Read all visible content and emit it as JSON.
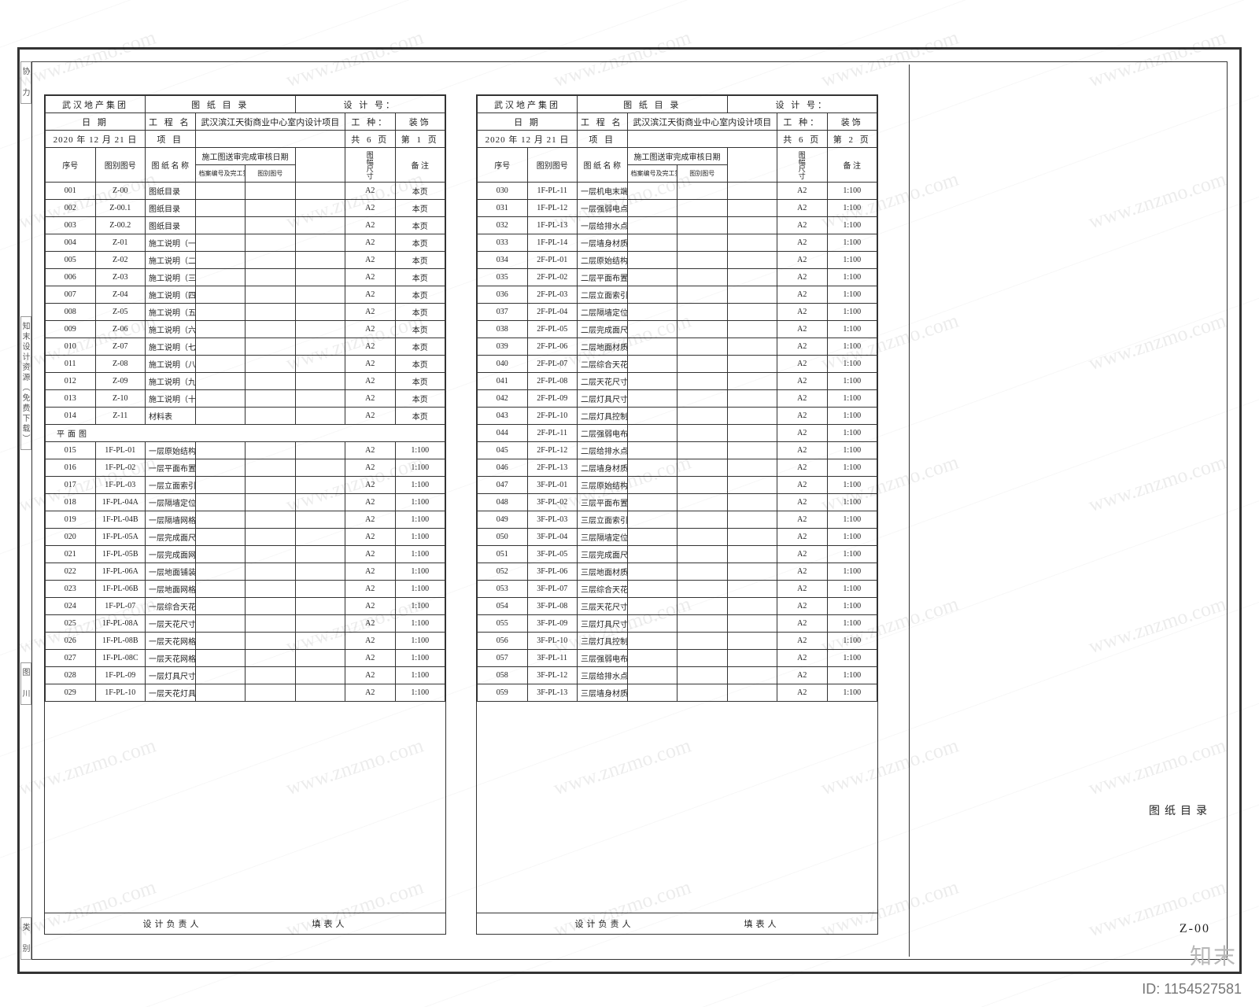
{
  "side_labels": [
    "协 力",
    "知末设计资源（免费下载）",
    "图  川",
    "类  别"
  ],
  "footer_id": "ID: 1154527581",
  "brand_mark": "知末",
  "watermark_text": "www.znzmo.com",
  "titleblock": {
    "sheet_name_label": "图纸目录",
    "sheet_code": "Z-00"
  },
  "common_header": {
    "owner": "武汉地产集团",
    "catalog_title": "图 纸 目 录",
    "design_no_label": "设 计 号：",
    "date_label": "日 期",
    "project_label": "工 程 名 称",
    "project_name": "武汉滨江天街商业中心室内设计项目",
    "discipline_label": "工 种：",
    "discipline": "装饰",
    "date_value": "2020 年 12 月 21 日",
    "item_label": "项  目",
    "page_total_label": "共 6 页",
    "cols": {
      "seq": "序号",
      "dwg_no": "图别图号",
      "dwg_name": "图  纸  名  称",
      "ref_group": "施工图送审完成审核日期",
      "ref_a": "档案编号及完工签证号",
      "ref_b": "图别图号",
      "size": "图幅尺寸",
      "remark": "备  注"
    },
    "design_lead": "设计负责人",
    "compiler": "填表人"
  },
  "left_sheet": {
    "page_label": "第 1 页",
    "rows": [
      {
        "seq": "001",
        "no": "Z-00",
        "name": "图纸目录",
        "size": "A2",
        "remark": "本页"
      },
      {
        "seq": "002",
        "no": "Z-00.1",
        "name": "图纸目录",
        "size": "A2",
        "remark": "本页"
      },
      {
        "seq": "003",
        "no": "Z-00.2",
        "name": "图纸目录",
        "size": "A2",
        "remark": "本页"
      },
      {
        "seq": "004",
        "no": "Z-01",
        "name": "施工说明（一）",
        "size": "A2",
        "remark": "本页"
      },
      {
        "seq": "005",
        "no": "Z-02",
        "name": "施工说明（二）",
        "size": "A2",
        "remark": "本页"
      },
      {
        "seq": "006",
        "no": "Z-03",
        "name": "施工说明（三）",
        "size": "A2",
        "remark": "本页"
      },
      {
        "seq": "007",
        "no": "Z-04",
        "name": "施工说明（四）",
        "size": "A2",
        "remark": "本页"
      },
      {
        "seq": "008",
        "no": "Z-05",
        "name": "施工说明（五）",
        "size": "A2",
        "remark": "本页"
      },
      {
        "seq": "009",
        "no": "Z-06",
        "name": "施工说明（六）",
        "size": "A2",
        "remark": "本页"
      },
      {
        "seq": "010",
        "no": "Z-07",
        "name": "施工说明（七）",
        "size": "A2",
        "remark": "本页"
      },
      {
        "seq": "011",
        "no": "Z-08",
        "name": "施工说明（八）",
        "size": "A2",
        "remark": "本页"
      },
      {
        "seq": "012",
        "no": "Z-09",
        "name": "施工说明（九）",
        "size": "A2",
        "remark": "本页"
      },
      {
        "seq": "013",
        "no": "Z-10",
        "name": "施工说明（十）",
        "size": "A2",
        "remark": "本页"
      },
      {
        "seq": "014",
        "no": "Z-11",
        "name": "材料表",
        "size": "A2",
        "remark": "本页"
      },
      {
        "section": "平面图"
      },
      {
        "seq": "015",
        "no": "1F-PL-01",
        "name": "一层原始结构图",
        "size": "A2",
        "remark": "1:100"
      },
      {
        "seq": "016",
        "no": "1F-PL-02",
        "name": "一层平面布置图",
        "size": "A2",
        "remark": "1:100"
      },
      {
        "seq": "017",
        "no": "1F-PL-03",
        "name": "一层立面索引图",
        "size": "A2",
        "remark": "1:100"
      },
      {
        "seq": "018",
        "no": "1F-PL-04A",
        "name": "一层隔墙定位图",
        "size": "A2",
        "remark": "1:100"
      },
      {
        "seq": "019",
        "no": "1F-PL-04B",
        "name": "一层隔墙网格尺寸定位图",
        "size": "A2",
        "remark": "1:100"
      },
      {
        "seq": "020",
        "no": "1F-PL-05A",
        "name": "一层完成面尺寸定位图",
        "size": "A2",
        "remark": "1:100"
      },
      {
        "seq": "021",
        "no": "1F-PL-05B",
        "name": "一层完成面网格尺寸定位图",
        "size": "A2",
        "remark": "1:100"
      },
      {
        "seq": "022",
        "no": "1F-PL-06A",
        "name": "一层地面铺装图",
        "size": "A2",
        "remark": "1:100"
      },
      {
        "seq": "023",
        "no": "1F-PL-06B",
        "name": "一层地面网格尺寸定位图",
        "size": "A2",
        "remark": "1:100"
      },
      {
        "seq": "024",
        "no": "1F-PL-07",
        "name": "一层综合天花图",
        "size": "A2",
        "remark": "1:100"
      },
      {
        "seq": "025",
        "no": "1F-PL-08A",
        "name": "一层天花尺寸定位图",
        "size": "A2",
        "remark": "1:100"
      },
      {
        "seq": "026",
        "no": "1F-PL-08B",
        "name": "一层天花网格尺寸定位图",
        "size": "A2",
        "remark": "1:100"
      },
      {
        "seq": "027",
        "no": "1F-PL-08C",
        "name": "一层天花网格尺寸定位图",
        "size": "A2",
        "remark": "1:100"
      },
      {
        "seq": "028",
        "no": "1F-PL-09",
        "name": "一层灯具尺寸定位图",
        "size": "A2",
        "remark": "1:100"
      },
      {
        "seq": "029",
        "no": "1F-PL-10",
        "name": "一层天花灯具控制图",
        "size": "A2",
        "remark": "1:100"
      }
    ]
  },
  "right_sheet": {
    "page_label": "第 2 页",
    "rows": [
      {
        "seq": "030",
        "no": "1F-PL-11",
        "name": "一层机电末端控制图",
        "size": "A2",
        "remark": "1:100"
      },
      {
        "seq": "031",
        "no": "1F-PL-12",
        "name": "一层强弱电点位图",
        "size": "A2",
        "remark": "1:100"
      },
      {
        "seq": "032",
        "no": "1F-PL-13",
        "name": "一层给排水点位图",
        "size": "A2",
        "remark": "1:100"
      },
      {
        "seq": "033",
        "no": "1F-PL-14",
        "name": "一层墙身材质图",
        "size": "A2",
        "remark": "1:100"
      },
      {
        "seq": "034",
        "no": "2F-PL-01",
        "name": "二层原始结构图",
        "size": "A2",
        "remark": "1:100"
      },
      {
        "seq": "035",
        "no": "2F-PL-02",
        "name": "二层平面布置图",
        "size": "A2",
        "remark": "1:100"
      },
      {
        "seq": "036",
        "no": "2F-PL-03",
        "name": "二层立面索引图",
        "size": "A2",
        "remark": "1:100"
      },
      {
        "seq": "037",
        "no": "2F-PL-04",
        "name": "二层隔墙定位图",
        "size": "A2",
        "remark": "1:100"
      },
      {
        "seq": "038",
        "no": "2F-PL-05",
        "name": "二层完成面尺寸定位图",
        "size": "A2",
        "remark": "1:100"
      },
      {
        "seq": "039",
        "no": "2F-PL-06",
        "name": "二层地面材质图",
        "size": "A2",
        "remark": "1:100"
      },
      {
        "seq": "040",
        "no": "2F-PL-07",
        "name": "二层综合天花图",
        "size": "A2",
        "remark": "1:100"
      },
      {
        "seq": "041",
        "no": "2F-PL-08",
        "name": "二层天花尺寸定位图",
        "size": "A2",
        "remark": "1:100"
      },
      {
        "seq": "042",
        "no": "2F-PL-09",
        "name": "二层灯具尺寸定位图",
        "size": "A2",
        "remark": "1:100"
      },
      {
        "seq": "043",
        "no": "2F-PL-10",
        "name": "二层灯具控制图",
        "size": "A2",
        "remark": "1:100"
      },
      {
        "seq": "044",
        "no": "2F-PL-11",
        "name": "二层强弱电布置图",
        "size": "A2",
        "remark": "1:100"
      },
      {
        "seq": "045",
        "no": "2F-PL-12",
        "name": "二层给排水点位图",
        "size": "A2",
        "remark": "1:100"
      },
      {
        "seq": "046",
        "no": "2F-PL-13",
        "name": "二层墙身材质图",
        "size": "A2",
        "remark": "1:100"
      },
      {
        "seq": "047",
        "no": "3F-PL-01",
        "name": "三层原始结构图",
        "size": "A2",
        "remark": "1:100"
      },
      {
        "seq": "048",
        "no": "3F-PL-02",
        "name": "三层平面布置图",
        "size": "A2",
        "remark": "1:100"
      },
      {
        "seq": "049",
        "no": "3F-PL-03",
        "name": "三层立面索引图",
        "size": "A2",
        "remark": "1:100"
      },
      {
        "seq": "050",
        "no": "3F-PL-04",
        "name": "三层隔墙定位图",
        "size": "A2",
        "remark": "1:100"
      },
      {
        "seq": "051",
        "no": "3F-PL-05",
        "name": "三层完成面尺寸定位图",
        "size": "A2",
        "remark": "1:100"
      },
      {
        "seq": "052",
        "no": "3F-PL-06",
        "name": "三层地面材质图",
        "size": "A2",
        "remark": "1:100"
      },
      {
        "seq": "053",
        "no": "3F-PL-07",
        "name": "三层综合天花图",
        "size": "A2",
        "remark": "1:100"
      },
      {
        "seq": "054",
        "no": "3F-PL-08",
        "name": "三层天花尺寸定位图",
        "size": "A2",
        "remark": "1:100"
      },
      {
        "seq": "055",
        "no": "3F-PL-09",
        "name": "三层灯具尺寸定位图",
        "size": "A2",
        "remark": "1:100"
      },
      {
        "seq": "056",
        "no": "3F-PL-10",
        "name": "三层灯具控制图",
        "size": "A2",
        "remark": "1:100"
      },
      {
        "seq": "057",
        "no": "3F-PL-11",
        "name": "三层强弱电布置图",
        "size": "A2",
        "remark": "1:100"
      },
      {
        "seq": "058",
        "no": "3F-PL-12",
        "name": "三层给排水点位图",
        "size": "A2",
        "remark": "1:100"
      },
      {
        "seq": "059",
        "no": "3F-PL-13",
        "name": "三层墙身材质图",
        "size": "A2",
        "remark": "1:100"
      }
    ]
  }
}
